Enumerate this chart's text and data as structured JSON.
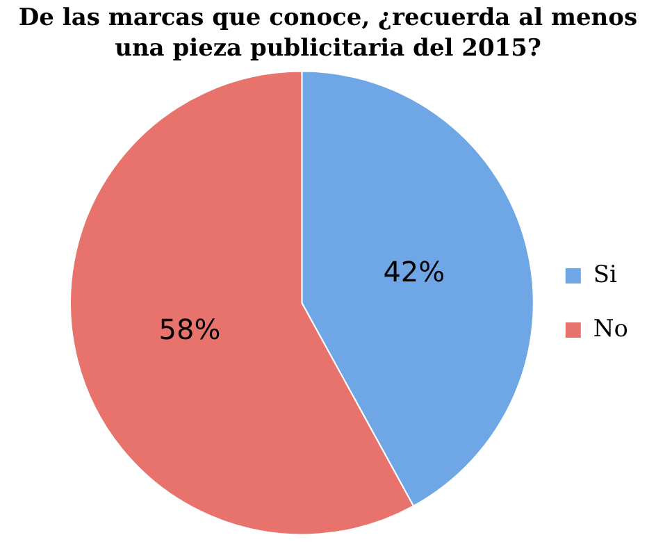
{
  "chart_data": {
    "type": "pie",
    "title": "De las marcas que conoce, ¿recuerda al menos una pieza publicitaria del 2015?",
    "categories": [
      "Si",
      "No"
    ],
    "values": [
      42,
      58
    ],
    "colors": [
      "#6fa6e6",
      "#e8736c"
    ],
    "value_labels": [
      "42%",
      "58%"
    ],
    "legend": "right"
  }
}
